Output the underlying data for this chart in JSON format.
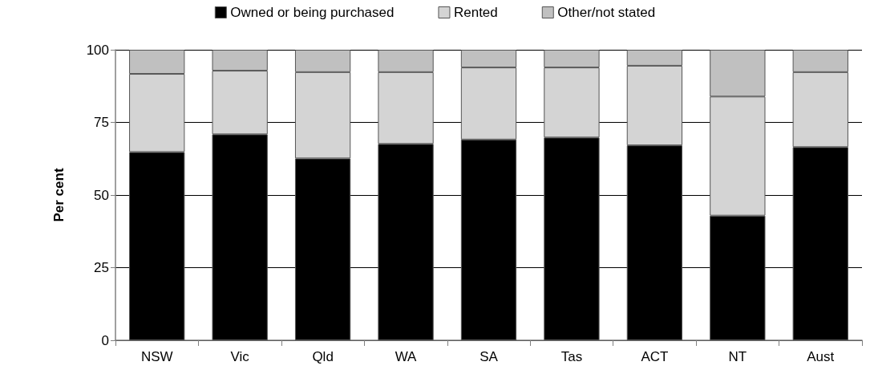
{
  "chart_data": {
    "type": "bar",
    "stacked": true,
    "ylabel": "Per cent",
    "categories": [
      "NSW",
      "Vic",
      "Qld",
      "WA",
      "SA",
      "Tas",
      "ACT",
      "NT",
      "Aust"
    ],
    "series": [
      {
        "name": "Owned or being purchased",
        "color": "#000000",
        "values": [
          64.8,
          70.9,
          62.6,
          67.6,
          69.1,
          69.8,
          67.1,
          42.9,
          66.5
        ]
      },
      {
        "name": "Rented",
        "color": "#d4d4d4",
        "values": [
          26.9,
          21.9,
          29.7,
          24.7,
          24.8,
          24.1,
          27.4,
          41.0,
          25.8
        ]
      },
      {
        "name": "Other/not stated",
        "color": "#c0c0c0",
        "values": [
          8.3,
          7.2,
          7.7,
          7.7,
          6.1,
          6.1,
          5.5,
          16.1,
          7.7
        ]
      }
    ],
    "ylim": [
      0,
      100
    ],
    "yticks": [
      0,
      25,
      50,
      75,
      100
    ],
    "grid": "y",
    "legend": "top"
  }
}
